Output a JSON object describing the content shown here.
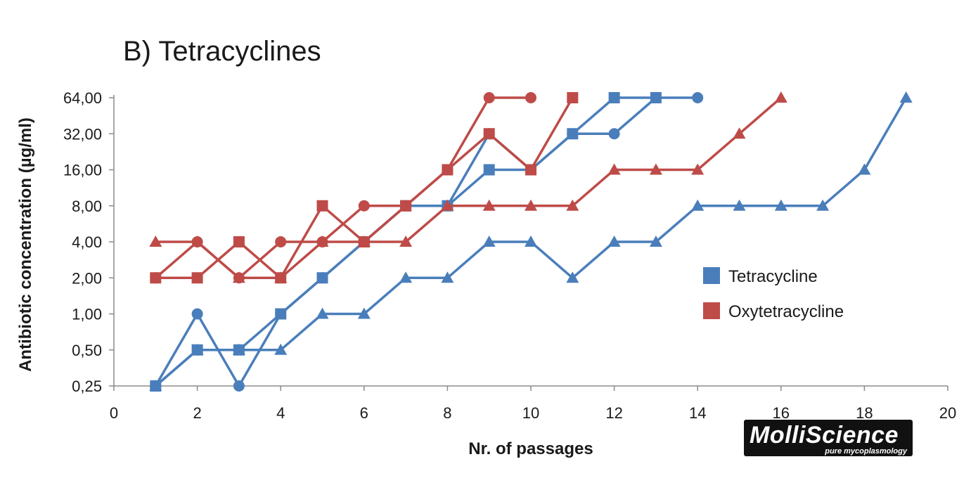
{
  "chart_data": {
    "type": "line",
    "title": "B) Tetracyclines",
    "xlabel": "Nr. of passages",
    "ylabel": "Antibiotic concentration (µg/ml)",
    "x_ticks": [
      "0",
      "2",
      "4",
      "6",
      "8",
      "10",
      "12",
      "14",
      "16",
      "18",
      "20"
    ],
    "xlim": [
      0,
      20
    ],
    "y_scale": "log2",
    "y_ticks": [
      "0,25",
      "0,50",
      "1,00",
      "2,00",
      "4,00",
      "8,00",
      "16,00",
      "32,00",
      "64,00"
    ],
    "y_tick_values": [
      0.25,
      0.5,
      1,
      2,
      4,
      8,
      16,
      32,
      64
    ],
    "ylim": [
      0.25,
      64
    ],
    "legend": [
      {
        "label": "Tetracycline",
        "color": "#4a7ebb"
      },
      {
        "label": "Oxytetracycline",
        "color": "#be4b48"
      }
    ],
    "legend_position": "right",
    "series": [
      {
        "name": "Tetracycline (circles)",
        "color": "#4a7ebb",
        "marker": "circle",
        "x": [
          1,
          2,
          3,
          4,
          5,
          6,
          7,
          8,
          9,
          10,
          11,
          12,
          13,
          14
        ],
        "y": [
          0.25,
          1,
          0.25,
          1,
          2,
          4,
          8,
          8,
          32,
          16,
          32,
          32,
          64,
          64
        ]
      },
      {
        "name": "Tetracycline (squares)",
        "color": "#4a7ebb",
        "marker": "square",
        "x": [
          1,
          2,
          3,
          4,
          5,
          6,
          7,
          8,
          9,
          10,
          11,
          12,
          13
        ],
        "y": [
          0.25,
          0.5,
          0.5,
          1,
          2,
          4,
          8,
          8,
          16,
          16,
          32,
          64,
          64
        ]
      },
      {
        "name": "Tetracycline (triangles)",
        "color": "#4a7ebb",
        "marker": "triangle",
        "x": [
          1,
          2,
          3,
          4,
          5,
          6,
          7,
          8,
          9,
          10,
          11,
          12,
          13,
          14,
          15,
          16,
          17,
          18,
          19
        ],
        "y": [
          0.25,
          0.5,
          0.5,
          0.5,
          1,
          1,
          2,
          2,
          4,
          4,
          2,
          4,
          4,
          8,
          8,
          8,
          8,
          16,
          64
        ]
      },
      {
        "name": "Oxytetracycline (circles)",
        "color": "#be4b48",
        "marker": "circle",
        "x": [
          1,
          2,
          3,
          4,
          5,
          6,
          7,
          8,
          9,
          10
        ],
        "y": [
          2,
          4,
          2,
          4,
          4,
          8,
          8,
          16,
          64,
          64
        ]
      },
      {
        "name": "Oxytetracycline (squares)",
        "color": "#be4b48",
        "marker": "square",
        "x": [
          1,
          2,
          3,
          4,
          5,
          6,
          7,
          8,
          9,
          10,
          11
        ],
        "y": [
          2,
          2,
          4,
          2,
          8,
          4,
          8,
          16,
          32,
          16,
          64
        ]
      },
      {
        "name": "Oxytetracycline (triangles)",
        "color": "#be4b48",
        "marker": "triangle",
        "x": [
          1,
          2,
          3,
          4,
          5,
          6,
          7,
          8,
          9,
          10,
          11,
          12,
          13,
          14,
          15,
          16
        ],
        "y": [
          4,
          4,
          2,
          2,
          4,
          4,
          4,
          8,
          8,
          8,
          8,
          16,
          16,
          16,
          32,
          64
        ]
      }
    ]
  },
  "logo": {
    "main": "MolliScience",
    "tagline": "pure mycoplasmology"
  }
}
